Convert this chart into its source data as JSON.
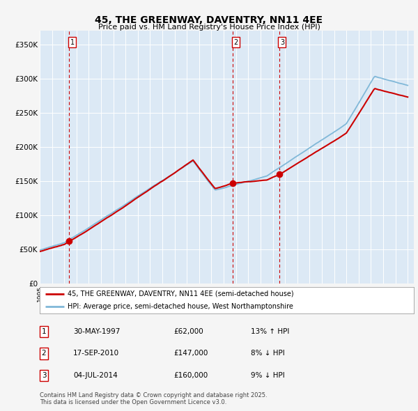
{
  "title": "45, THE GREENWAY, DAVENTRY, NN11 4EE",
  "subtitle": "Price paid vs. HM Land Registry's House Price Index (HPI)",
  "legend_line1": "45, THE GREENWAY, DAVENTRY, NN11 4EE (semi-detached house)",
  "legend_line2": "HPI: Average price, semi-detached house, West Northamptonshire",
  "footnote": "Contains HM Land Registry data © Crown copyright and database right 2025.\nThis data is licensed under the Open Government Licence v3.0.",
  "sale_color": "#cc0000",
  "hpi_color": "#80b8d8",
  "fig_bg": "#f5f5f5",
  "plot_bg": "#dce9f5",
  "vline_color": "#cc0000",
  "marker_color": "#cc0000",
  "ylim": [
    0,
    370000
  ],
  "yticks": [
    0,
    50000,
    100000,
    150000,
    200000,
    250000,
    300000,
    350000
  ],
  "ytick_labels": [
    "£0",
    "£50K",
    "£100K",
    "£150K",
    "£200K",
    "£250K",
    "£300K",
    "£350K"
  ],
  "xmin": 1995,
  "xmax": 2025.5,
  "sales": [
    {
      "label": "1",
      "date_str": "30-MAY-1997",
      "price": 62000,
      "pct": "13% ↑ HPI",
      "x": 1997.41
    },
    {
      "label": "2",
      "date_str": "17-SEP-2010",
      "price": 147000,
      "pct": "8% ↓ HPI",
      "x": 2010.71
    },
    {
      "label": "3",
      "date_str": "04-JUL-2014",
      "price": 160000,
      "pct": "9% ↓ HPI",
      "x": 2014.51
    }
  ],
  "table_rows": [
    [
      "1",
      "30-MAY-1997",
      "£62,000",
      "13% ↑ HPI"
    ],
    [
      "2",
      "17-SEP-2010",
      "£147,000",
      "8% ↓ HPI"
    ],
    [
      "3",
      "04-JUL-2014",
      "£160,000",
      "9% ↓ HPI"
    ]
  ]
}
